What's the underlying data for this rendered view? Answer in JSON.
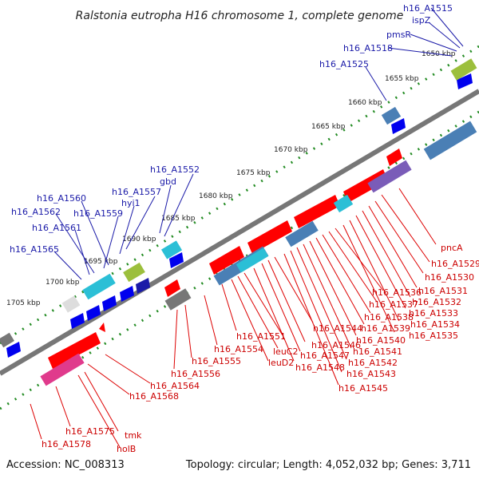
{
  "title": "Ralstonia eutropha H16 chromosome 1, complete genome",
  "footer": {
    "accession": "Accession: NC_008313",
    "topology": "Topology: circular; Length: 4,052,032 bp; Genes: 3,711"
  },
  "ticks": [
    "1650 kbp",
    "1655 kbp",
    "1660 kbp",
    "1665 kbp",
    "1670 kbp",
    "1675 kbp",
    "1680 kbp",
    "1685 kbp",
    "1690 kbp",
    "1695 kbp",
    "1700 kbp",
    "1705 kbp"
  ],
  "blue_labels": [
    "h16_A1515",
    "ispZ",
    "pmsR",
    "h16_A1518",
    "h16_A1525",
    "h16_A1552",
    "gbd",
    "h16_A1557",
    "hyi1",
    "h16_A1560",
    "h16_A1559",
    "h16_A1562",
    "h16_A1561",
    "h16_A1565"
  ],
  "red_labels": [
    "pncA",
    "h16_A1529",
    "h16_A1530",
    "h16_A1531",
    "h16_A1536",
    "h16_A1532",
    "h16_A1537",
    "h16_A1533",
    "h16_A1538",
    "h16_A1534",
    "h16_A1539",
    "h16_A1535",
    "h16_A1544",
    "h16_A1540",
    "h16_A1551",
    "h16_A1546",
    "h16_A1541",
    "leuC2",
    "h16_A1547",
    "h16_A1542",
    "leuD2",
    "h16_A1548",
    "h16_A1543",
    "h16_A1554",
    "h16_A1555",
    "h16_A1545",
    "h16_A1556",
    "h16_A1564",
    "h16_A1568",
    "h16_A1575",
    "tmk",
    "h16_A1578",
    "holB"
  ],
  "colors": {
    "backbone": "#777777",
    "forward_gene": "#ff0000",
    "reverse_gene": "#0000ee",
    "label_blue": "#1a1aa8",
    "label_red": "#cc0000",
    "tick_dots": "#228b22"
  }
}
